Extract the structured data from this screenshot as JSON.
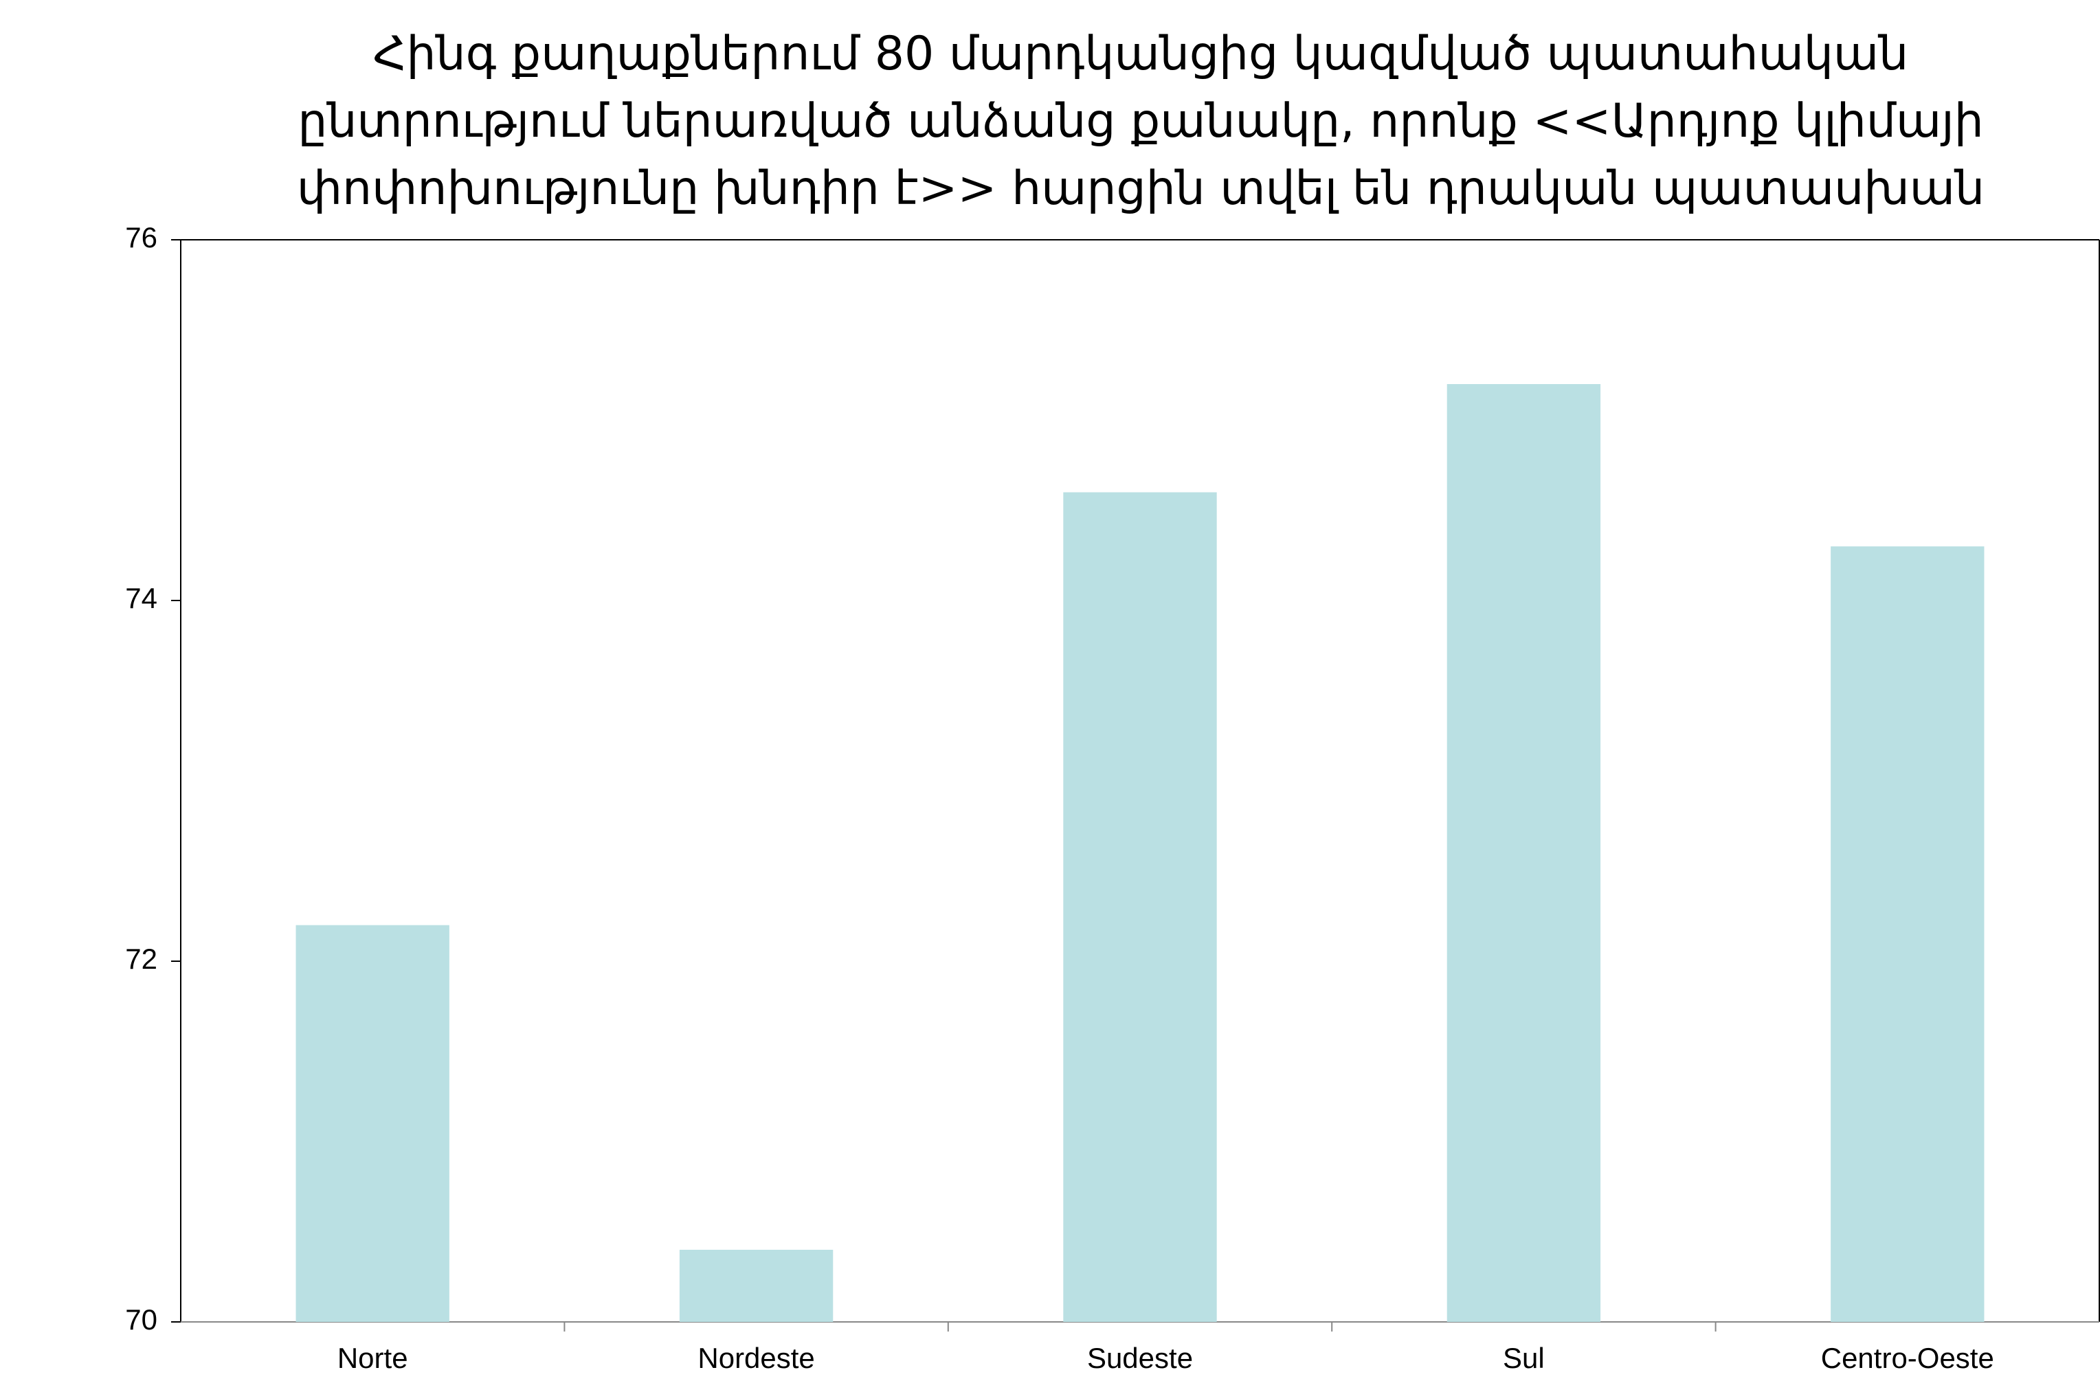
{
  "chart_data": {
    "type": "bar",
    "title": "Հինգ քաղաքներում 80 մարդկանցից կազմված պատահական ընտրությում ներառված անձանց քանակը, որոնք <<Արդյոք կլիմայի փոփոխությունը խնդիր է>> հարցին տվել են դրական պատասխան",
    "categories": [
      "Norte",
      "Nordeste",
      "Sudeste",
      "Sul",
      "Centro-Oeste"
    ],
    "values": [
      72.2,
      70.4,
      74.6,
      75.2,
      74.3
    ],
    "color": "#bae0e3",
    "ylim": [
      70,
      76
    ],
    "yticks": [
      70,
      72,
      74,
      76
    ],
    "grid": false
  }
}
